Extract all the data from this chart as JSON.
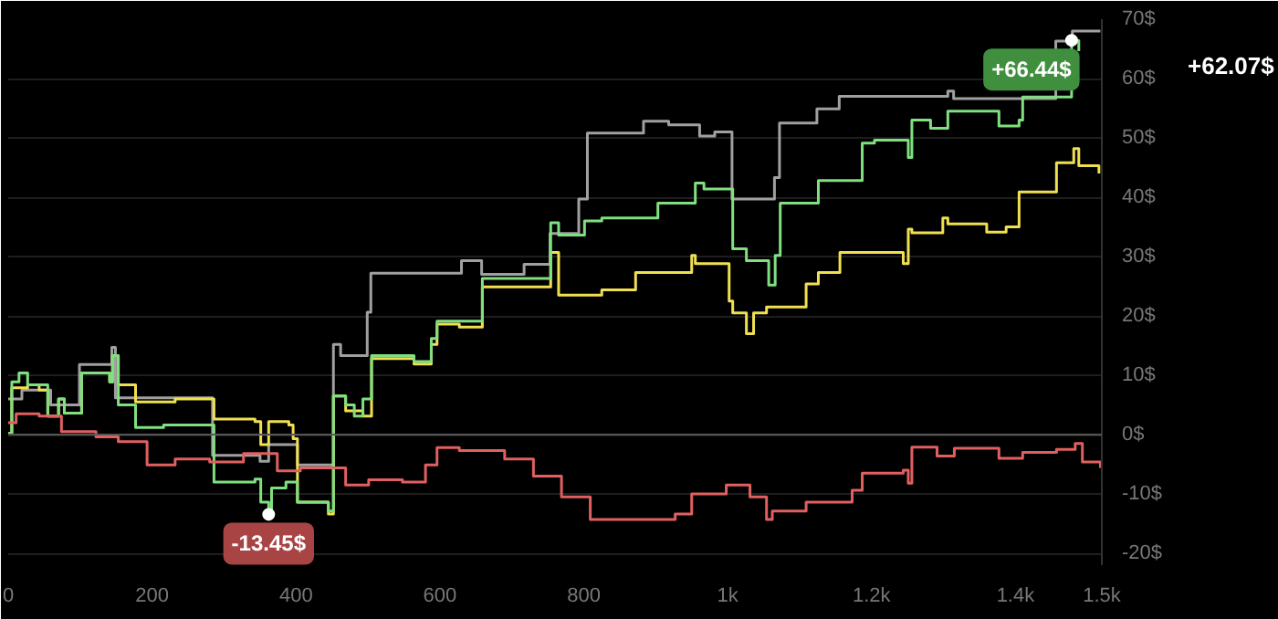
{
  "chart_data": {
    "type": "step",
    "xlim": [
      0,
      1520
    ],
    "ylim": [
      -22,
      70
    ],
    "xticks": [
      0,
      200,
      400,
      600,
      800,
      {
        "value": 1000,
        "label": "1k"
      },
      {
        "value": 1200,
        "label": "1.2k"
      },
      {
        "value": 1400,
        "label": "1.4k"
      },
      {
        "value": 1520,
        "label": "1.5k"
      }
    ],
    "yticks": [
      {
        "value": -20,
        "label": "-20$"
      },
      {
        "value": -10,
        "label": "-10$"
      },
      {
        "value": 0,
        "label": "0$"
      },
      {
        "value": 10,
        "label": "10$"
      },
      {
        "value": 20,
        "label": "20$"
      },
      {
        "value": 30,
        "label": "30$"
      },
      {
        "value": 40,
        "label": "40$"
      },
      {
        "value": 50,
        "label": "50$"
      },
      {
        "value": 60,
        "label": "60$"
      },
      {
        "value": 70,
        "label": "70$"
      }
    ],
    "grid": "y",
    "series": [
      {
        "color": "#a0a0a0",
        "x": [
          0,
          19,
          59,
          99,
          144,
          149,
          284,
          350,
          362,
          402,
          452,
          462,
          499,
          504,
          630,
          658,
          717,
          753,
          793,
          805,
          883,
          918,
          961,
          982,
          1006,
          1065,
          1072,
          1124,
          1155,
          1306,
          1314,
          1456,
          1479,
          1518
        ],
        "values": [
          6.0,
          7.5,
          5.0,
          11.8,
          14.7,
          6.2,
          -3.5,
          -4.5,
          -1.7,
          -5.1,
          15.2,
          13.3,
          20.6,
          27.2,
          29.3,
          27.0,
          28.7,
          33.9,
          39.7,
          50.8,
          52.8,
          52.2,
          50.3,
          51.0,
          39.7,
          43.3,
          52.5,
          54.9,
          57.0,
          57.9,
          56.6,
          66.3,
          68.0,
          68.0
        ]
      },
      {
        "color": "#f0e050",
        "x": [
          0,
          5,
          27,
          43,
          55,
          70,
          78,
          102,
          141,
          145,
          153,
          177,
          232,
          286,
          343,
          351,
          362,
          390,
          396,
          402,
          445,
          452,
          469,
          493,
          505,
          564,
          588,
          596,
          627,
          659,
          706,
          754,
          765,
          801,
          825,
          872,
          903,
          950,
          955,
          967,
          1002,
          1007,
          1026,
          1036,
          1054,
          1057,
          1109,
          1126,
          1156,
          1187,
          1244,
          1251,
          1256,
          1299,
          1306,
          1360,
          1387,
          1405,
          1410,
          1457,
          1481,
          1488,
          1516
        ],
        "values": [
          0.2,
          7.9,
          8.4,
          7.5,
          3.1,
          6.0,
          3.6,
          10.4,
          8.9,
          13.3,
          8.4,
          5.5,
          6.0,
          2.6,
          2.2,
          -1.7,
          2.2,
          1.6,
          -0.7,
          -11.4,
          -13.4,
          6.5,
          4.0,
          3.1,
          12.8,
          11.9,
          15.2,
          18.6,
          18.1,
          24.9,
          24.9,
          30.7,
          23.5,
          23.5,
          24.4,
          27.3,
          27.3,
          30.2,
          28.8,
          28.8,
          22.5,
          20.5,
          17.0,
          20.5,
          21.5,
          21.5,
          25.4,
          27.3,
          30.7,
          30.7,
          28.8,
          34.6,
          34.0,
          36.5,
          35.5,
          34.1,
          35.0,
          40.9,
          40.9,
          45.8,
          48.2,
          45.3,
          44.0
        ]
      },
      {
        "color": "#80e080",
        "x": [
          0,
          5,
          15,
          27,
          55,
          70,
          78,
          102,
          141,
          145,
          153,
          177,
          216,
          286,
          343,
          351,
          362,
          366,
          386,
          402,
          445,
          452,
          469,
          481,
          493,
          505,
          564,
          588,
          596,
          627,
          659,
          706,
          754,
          765,
          801,
          825,
          872,
          903,
          950,
          955,
          967,
          1002,
          1007,
          1026,
          1054,
          1057,
          1066,
          1073,
          1109,
          1126,
          1156,
          1187,
          1204,
          1244,
          1251,
          1256,
          1282,
          1299,
          1306,
          1377,
          1405,
          1410,
          1457,
          1478,
          1488
        ],
        "values": [
          0.2,
          8.9,
          10.4,
          8.4,
          3.1,
          6.0,
          3.6,
          10.4,
          8.9,
          13.3,
          5.0,
          1.2,
          1.6,
          -8.0,
          -7.5,
          -11.4,
          -13.4,
          -9.0,
          -8.0,
          -11.4,
          -12.9,
          6.5,
          5.0,
          3.1,
          6.0,
          13.3,
          12.3,
          16.2,
          19.1,
          19.1,
          26.3,
          26.3,
          35.7,
          33.6,
          36.0,
          36.5,
          36.5,
          39.0,
          39.0,
          42.4,
          41.4,
          41.4,
          31.3,
          29.3,
          29.3,
          25.2,
          30.2,
          39.0,
          39.0,
          42.8,
          42.8,
          49.1,
          49.6,
          49.6,
          46.7,
          53.0,
          51.6,
          51.6,
          54.5,
          52.0,
          53.0,
          56.9,
          56.9,
          66.4,
          64.6
        ]
      },
      {
        "color": "#e06060",
        "x": [
          0,
          11,
          43,
          74,
          122,
          153,
          193,
          232,
          280,
          327,
          374,
          406,
          469,
          501,
          548,
          580,
          596,
          627,
          690,
          730,
          769,
          809,
          824,
          927,
          950,
          998,
          1031,
          1054,
          1062,
          1109,
          1126,
          1173,
          1187,
          1244,
          1251,
          1256,
          1291,
          1315,
          1370,
          1377,
          1410,
          1457,
          1483,
          1493,
          1518
        ],
        "values": [
          2.0,
          3.5,
          3.1,
          0.5,
          -0.4,
          -1.2,
          -5.1,
          -4.1,
          -4.6,
          -3.2,
          -6.1,
          -5.6,
          -8.5,
          -7.6,
          -8.0,
          -5.1,
          -2.2,
          -2.7,
          -4.1,
          -7.0,
          -10.5,
          -14.3,
          -14.3,
          -13.4,
          -10.0,
          -8.5,
          -10.5,
          -14.3,
          -12.9,
          -11.4,
          -11.4,
          -9.4,
          -6.5,
          -6.0,
          -8.2,
          -2.1,
          -3.6,
          -2.3,
          -2.3,
          -4.0,
          -3.0,
          -2.5,
          -1.5,
          -4.6,
          -5.6
        ]
      }
    ],
    "ref_lines": [
      {
        "axis": "y",
        "value": 0,
        "color": "#555555"
      }
    ],
    "annotations": [
      {
        "text": "+66.44$",
        "x": 1478,
        "y": 66.44
      },
      {
        "text": "-13.45$",
        "x": 362,
        "y": -13.45
      },
      "+62.07$"
    ]
  }
}
